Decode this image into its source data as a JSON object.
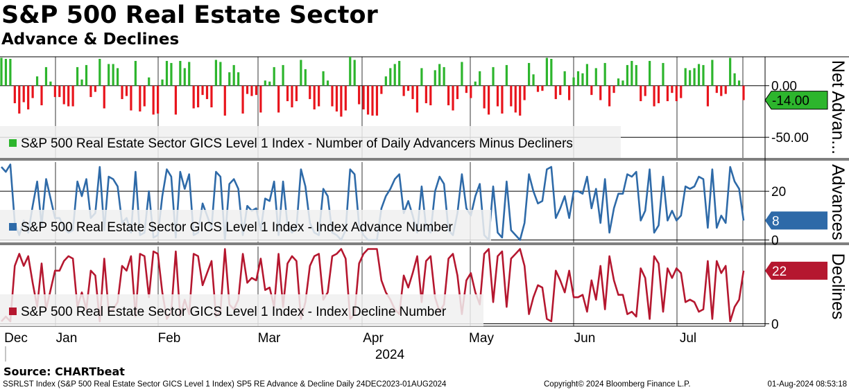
{
  "title": "S&P 500 Real Estate Sector",
  "subtitle": "Advance & Declines",
  "source": "Source: CHARTbeat",
  "footer": {
    "left": "SSRLST Index (S&P 500 Real Estate Sector GICS Level 1 Index) SP5 RE Advance & Decline  Daily 24DEC2023-01AUG2024",
    "center": "Copyright© 2024 Bloomberg Finance L.P.",
    "right": "01-Aug-2024 08:53:18"
  },
  "colors": {
    "net_pos": "#2db52d",
    "net_neg": "#e8141c",
    "adv": "#2e6aa8",
    "dec": "#b5172f",
    "grid": "#000000"
  },
  "chart_data": {
    "type": "line",
    "x_axis": {
      "months": [
        "Dec",
        "Jan",
        "Feb",
        "Mar",
        "Apr",
        "May",
        "Jun",
        "Jul"
      ],
      "year": "2024",
      "start": "24DEC2023",
      "end": "01AUG2024"
    },
    "panels": [
      {
        "id": "net",
        "kind": "bar",
        "axis_title": "Net Advan...",
        "legend": "S&P 500 Real Estate Sector GICS Level 1 Index - Number of Daily Advancers Minus Decliners",
        "ticks": [
          "0.00",
          "-50.00"
        ],
        "tick_values": [
          0,
          -50
        ],
        "ylim": [
          -70,
          28
        ],
        "last_label": "-14.00",
        "values": [
          27,
          26,
          26,
          -17,
          -27,
          -16,
          -23,
          -12,
          9,
          -19,
          18,
          4,
          -11,
          -11,
          -18,
          -20,
          -20,
          18,
          6,
          20,
          -11,
          -6,
          26,
          -22,
          21,
          21,
          17,
          -13,
          -10,
          -24,
          24,
          -25,
          -20,
          8,
          -28,
          -27,
          6,
          24,
          22,
          -28,
          24,
          17,
          23,
          -22,
          -21,
          -9,
          -13,
          -21,
          25,
          23,
          -29,
          13,
          20,
          13,
          -27,
          -8,
          -10,
          -9,
          -26,
          5,
          4,
          18,
          -26,
          20,
          -15,
          -21,
          -15,
          25,
          16,
          -13,
          -23,
          -20,
          14,
          5,
          -20,
          -25,
          -30,
          -24,
          28,
          25,
          -18,
          -23,
          -28,
          -29,
          -29,
          -8,
          9,
          17,
          21,
          24,
          -10,
          -5,
          -13,
          -26,
          17,
          -17,
          -19,
          15,
          21,
          18,
          -19,
          -24,
          -13,
          23,
          -7,
          -12,
          4,
          14,
          -22,
          -28,
          18,
          -20,
          -27,
          20,
          -20,
          -26,
          -29,
          -14,
          22,
          11,
          -6,
          -5,
          27,
          26,
          -13,
          -9,
          14,
          -14,
          8,
          14,
          12,
          21,
          -9,
          17,
          -14,
          22,
          -20,
          -7,
          7,
          5,
          20,
          24,
          20,
          -15,
          -10,
          24,
          -20,
          -17,
          22,
          -15,
          -7,
          -15,
          -12,
          17,
          15,
          17,
          21,
          20,
          -20,
          25,
          -7,
          -10,
          -8,
          27,
          12,
          5,
          -14
        ]
      },
      {
        "id": "adv",
        "kind": "line",
        "axis_title": "Advances",
        "legend": "S&P 500 Real Estate Sector GICS Level 1 Index - Index Advance Number",
        "ticks": [
          "20",
          "0"
        ],
        "tick_values": [
          20,
          0
        ],
        "ylim": [
          -1,
          32
        ],
        "last_label": "8",
        "values": [
          30,
          28,
          31,
          7,
          2,
          8,
          3,
          14,
          24,
          6,
          25,
          17,
          9,
          9,
          5,
          3,
          4,
          24,
          18,
          25,
          9,
          11,
          30,
          4,
          26,
          25,
          22,
          7,
          9,
          3,
          28,
          2,
          3,
          20,
          1,
          2,
          18,
          29,
          26,
          1,
          28,
          21,
          27,
          2,
          3,
          15,
          10,
          5,
          28,
          26,
          0,
          23,
          25,
          21,
          2,
          14,
          12,
          13,
          4,
          17,
          16,
          24,
          2,
          24,
          6,
          3,
          5,
          29,
          22,
          7,
          3,
          2,
          21,
          18,
          3,
          2,
          0,
          4,
          29,
          27,
          6,
          2,
          0,
          0,
          0,
          13,
          18,
          21,
          25,
          27,
          11,
          16,
          10,
          3,
          22,
          5,
          3,
          20,
          26,
          23,
          4,
          2,
          11,
          27,
          13,
          10,
          18,
          23,
          2,
          0,
          22,
          3,
          1,
          24,
          4,
          2,
          0,
          7,
          27,
          20,
          15,
          16,
          29,
          30,
          9,
          13,
          18,
          9,
          20,
          20,
          19,
          26,
          13,
          21,
          7,
          25,
          3,
          13,
          19,
          19,
          27,
          26,
          28,
          8,
          12,
          29,
          3,
          6,
          26,
          8,
          12,
          8,
          10,
          22,
          21,
          22,
          26,
          25,
          5,
          29,
          5,
          10,
          7,
          30,
          24,
          21,
          8
        ]
      },
      {
        "id": "dec",
        "kind": "line",
        "axis_title": "Declines",
        "legend": "S&P 500 Real Estate Sector GICS Level 1 Index - Index Decline Number",
        "ticks": [
          "0"
        ],
        "tick_values": [
          0
        ],
        "ylim": [
          -1,
          32
        ],
        "last_label": "22",
        "values": [
          1,
          3,
          1,
          24,
          29,
          24,
          28,
          17,
          7,
          25,
          6,
          14,
          22,
          22,
          26,
          28,
          27,
          7,
          13,
          6,
          22,
          20,
          1,
          27,
          5,
          6,
          9,
          24,
          22,
          28,
          3,
          29,
          28,
          11,
          30,
          29,
          13,
          2,
          5,
          30,
          3,
          10,
          4,
          29,
          28,
          16,
          21,
          26,
          3,
          5,
          31,
          8,
          6,
          10,
          29,
          17,
          19,
          18,
          27,
          14,
          15,
          7,
          29,
          7,
          25,
          28,
          26,
          2,
          9,
          24,
          28,
          29,
          10,
          13,
          28,
          29,
          31,
          27,
          2,
          4,
          25,
          29,
          31,
          31,
          31,
          18,
          13,
          10,
          6,
          4,
          20,
          15,
          21,
          28,
          9,
          26,
          28,
          11,
          5,
          8,
          27,
          29,
          20,
          4,
          18,
          21,
          13,
          8,
          29,
          31,
          9,
          28,
          30,
          7,
          27,
          29,
          31,
          24,
          4,
          11,
          16,
          15,
          2,
          1,
          22,
          18,
          13,
          22,
          11,
          11,
          12,
          5,
          18,
          10,
          24,
          6,
          28,
          18,
          12,
          12,
          4,
          5,
          3,
          23,
          19,
          2,
          28,
          25,
          5,
          23,
          19,
          23,
          21,
          9,
          10,
          9,
          5,
          6,
          26,
          2,
          26,
          21,
          24,
          1,
          7,
          10,
          22
        ]
      }
    ]
  }
}
